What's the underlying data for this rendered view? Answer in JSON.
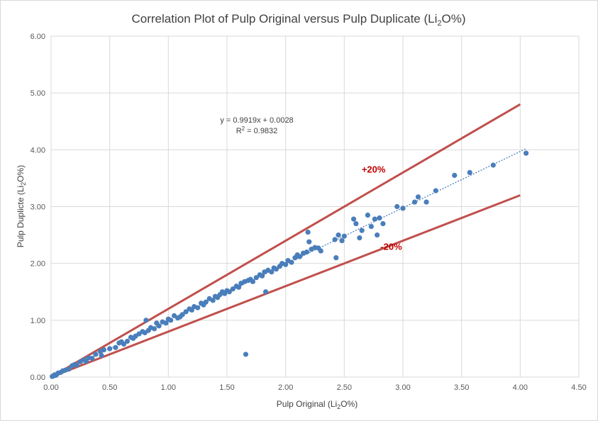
{
  "chart_data": {
    "type": "scatter",
    "title": {
      "prefix": "Correlation Plot of Pulp Original versus Pulp Duplicate (Li",
      "sub": "2",
      "suffix": "O%)"
    },
    "xlabel": {
      "prefix": "Pulp Original (Li",
      "sub": "2",
      "suffix": "O%)"
    },
    "ylabel": {
      "prefix": "Pulp Duplicte (Li",
      "sub": "2",
      "suffix": "O%)"
    },
    "xlim": [
      0,
      4.5
    ],
    "ylim": [
      0,
      6
    ],
    "x_ticks": [
      "0.00",
      "0.50",
      "1.00",
      "1.50",
      "2.00",
      "2.50",
      "3.00",
      "3.50",
      "4.00",
      "4.50"
    ],
    "y_ticks": [
      "0.00",
      "1.00",
      "2.00",
      "3.00",
      "4.00",
      "5.00",
      "6.00"
    ],
    "grid": true,
    "colors": {
      "points": "#4a7ebb",
      "bounds": "#c0504d",
      "trend": "#4a7ebb",
      "band_label": "#c00000"
    },
    "trendline": {
      "slope": 0.9919,
      "intercept": 0.0028,
      "x_range": [
        0,
        4.05
      ],
      "equation": "y = 0.9919x + 0.0028",
      "r2": {
        "prefix": "R",
        "sup": "2",
        "suffix": " = 0.9832"
      }
    },
    "bounds": [
      {
        "label": "+20%",
        "slope": 1.2,
        "x_range": [
          0,
          4.0
        ]
      },
      {
        "label": "-20%",
        "slope": 0.8,
        "x_range": [
          0,
          4.0
        ]
      }
    ],
    "points": [
      [
        0.01,
        0.01
      ],
      [
        0.02,
        0.02
      ],
      [
        0.03,
        0.04
      ],
      [
        0.04,
        0.03
      ],
      [
        0.05,
        0.05
      ],
      [
        0.06,
        0.07
      ],
      [
        0.08,
        0.08
      ],
      [
        0.1,
        0.11
      ],
      [
        0.12,
        0.12
      ],
      [
        0.15,
        0.14
      ],
      [
        0.18,
        0.2
      ],
      [
        0.2,
        0.22
      ],
      [
        0.22,
        0.21
      ],
      [
        0.25,
        0.27
      ],
      [
        0.28,
        0.3
      ],
      [
        0.3,
        0.28
      ],
      [
        0.32,
        0.34
      ],
      [
        0.35,
        0.33
      ],
      [
        0.38,
        0.4
      ],
      [
        0.42,
        0.45
      ],
      [
        0.43,
        0.38
      ],
      [
        0.45,
        0.48
      ],
      [
        0.5,
        0.5
      ],
      [
        0.55,
        0.52
      ],
      [
        0.58,
        0.6
      ],
      [
        0.6,
        0.62
      ],
      [
        0.62,
        0.58
      ],
      [
        0.65,
        0.63
      ],
      [
        0.68,
        0.7
      ],
      [
        0.7,
        0.68
      ],
      [
        0.72,
        0.72
      ],
      [
        0.75,
        0.76
      ],
      [
        0.78,
        0.8
      ],
      [
        0.8,
        0.78
      ],
      [
        0.81,
        1.0
      ],
      [
        0.83,
        0.82
      ],
      [
        0.85,
        0.87
      ],
      [
        0.88,
        0.85
      ],
      [
        0.9,
        0.95
      ],
      [
        0.92,
        0.9
      ],
      [
        0.95,
        0.97
      ],
      [
        0.98,
        0.95
      ],
      [
        1.0,
        1.02
      ],
      [
        1.02,
        1.0
      ],
      [
        1.05,
        1.08
      ],
      [
        1.08,
        1.04
      ],
      [
        1.1,
        1.06
      ],
      [
        1.12,
        1.1
      ],
      [
        1.15,
        1.15
      ],
      [
        1.18,
        1.2
      ],
      [
        1.2,
        1.18
      ],
      [
        1.22,
        1.24
      ],
      [
        1.25,
        1.22
      ],
      [
        1.28,
        1.3
      ],
      [
        1.3,
        1.27
      ],
      [
        1.32,
        1.32
      ],
      [
        1.35,
        1.38
      ],
      [
        1.38,
        1.35
      ],
      [
        1.4,
        1.42
      ],
      [
        1.42,
        1.4
      ],
      [
        1.44,
        1.45
      ],
      [
        1.46,
        1.5
      ],
      [
        1.48,
        1.47
      ],
      [
        1.5,
        1.52
      ],
      [
        1.52,
        1.5
      ],
      [
        1.55,
        1.55
      ],
      [
        1.58,
        1.6
      ],
      [
        1.6,
        1.58
      ],
      [
        1.62,
        1.65
      ],
      [
        1.65,
        1.68
      ],
      [
        1.66,
        0.4
      ],
      [
        1.68,
        1.7
      ],
      [
        1.7,
        1.72
      ],
      [
        1.72,
        1.68
      ],
      [
        1.75,
        1.75
      ],
      [
        1.78,
        1.8
      ],
      [
        1.8,
        1.78
      ],
      [
        1.82,
        1.85
      ],
      [
        1.83,
        1.5
      ],
      [
        1.85,
        1.88
      ],
      [
        1.88,
        1.85
      ],
      [
        1.9,
        1.92
      ],
      [
        1.92,
        1.9
      ],
      [
        1.95,
        1.95
      ],
      [
        1.97,
        2.0
      ],
      [
        2.0,
        1.98
      ],
      [
        2.02,
        2.05
      ],
      [
        2.05,
        2.02
      ],
      [
        2.08,
        2.1
      ],
      [
        2.1,
        2.15
      ],
      [
        2.12,
        2.12
      ],
      [
        2.15,
        2.18
      ],
      [
        2.18,
        2.2
      ],
      [
        2.19,
        2.55
      ],
      [
        2.2,
        2.38
      ],
      [
        2.22,
        2.25
      ],
      [
        2.25,
        2.28
      ],
      [
        2.28,
        2.27
      ],
      [
        2.3,
        2.22
      ],
      [
        2.42,
        2.42
      ],
      [
        2.43,
        2.1
      ],
      [
        2.45,
        2.5
      ],
      [
        2.48,
        2.4
      ],
      [
        2.5,
        2.48
      ],
      [
        2.58,
        2.78
      ],
      [
        2.6,
        2.7
      ],
      [
        2.63,
        2.45
      ],
      [
        2.65,
        2.58
      ],
      [
        2.7,
        2.85
      ],
      [
        2.73,
        2.65
      ],
      [
        2.76,
        2.78
      ],
      [
        2.78,
        2.5
      ],
      [
        2.8,
        2.8
      ],
      [
        2.83,
        2.7
      ],
      [
        2.95,
        3.0
      ],
      [
        3.0,
        2.97
      ],
      [
        3.1,
        3.08
      ],
      [
        3.13,
        3.17
      ],
      [
        3.2,
        3.08
      ],
      [
        3.28,
        3.28
      ],
      [
        3.44,
        3.55
      ],
      [
        3.57,
        3.6
      ],
      [
        3.77,
        3.73
      ],
      [
        4.05,
        3.94
      ]
    ],
    "annotations": [
      {
        "text": "+20%",
        "x": 2.75,
        "y": 3.6
      },
      {
        "text": "-20%",
        "x": 2.9,
        "y": 2.24
      }
    ]
  }
}
